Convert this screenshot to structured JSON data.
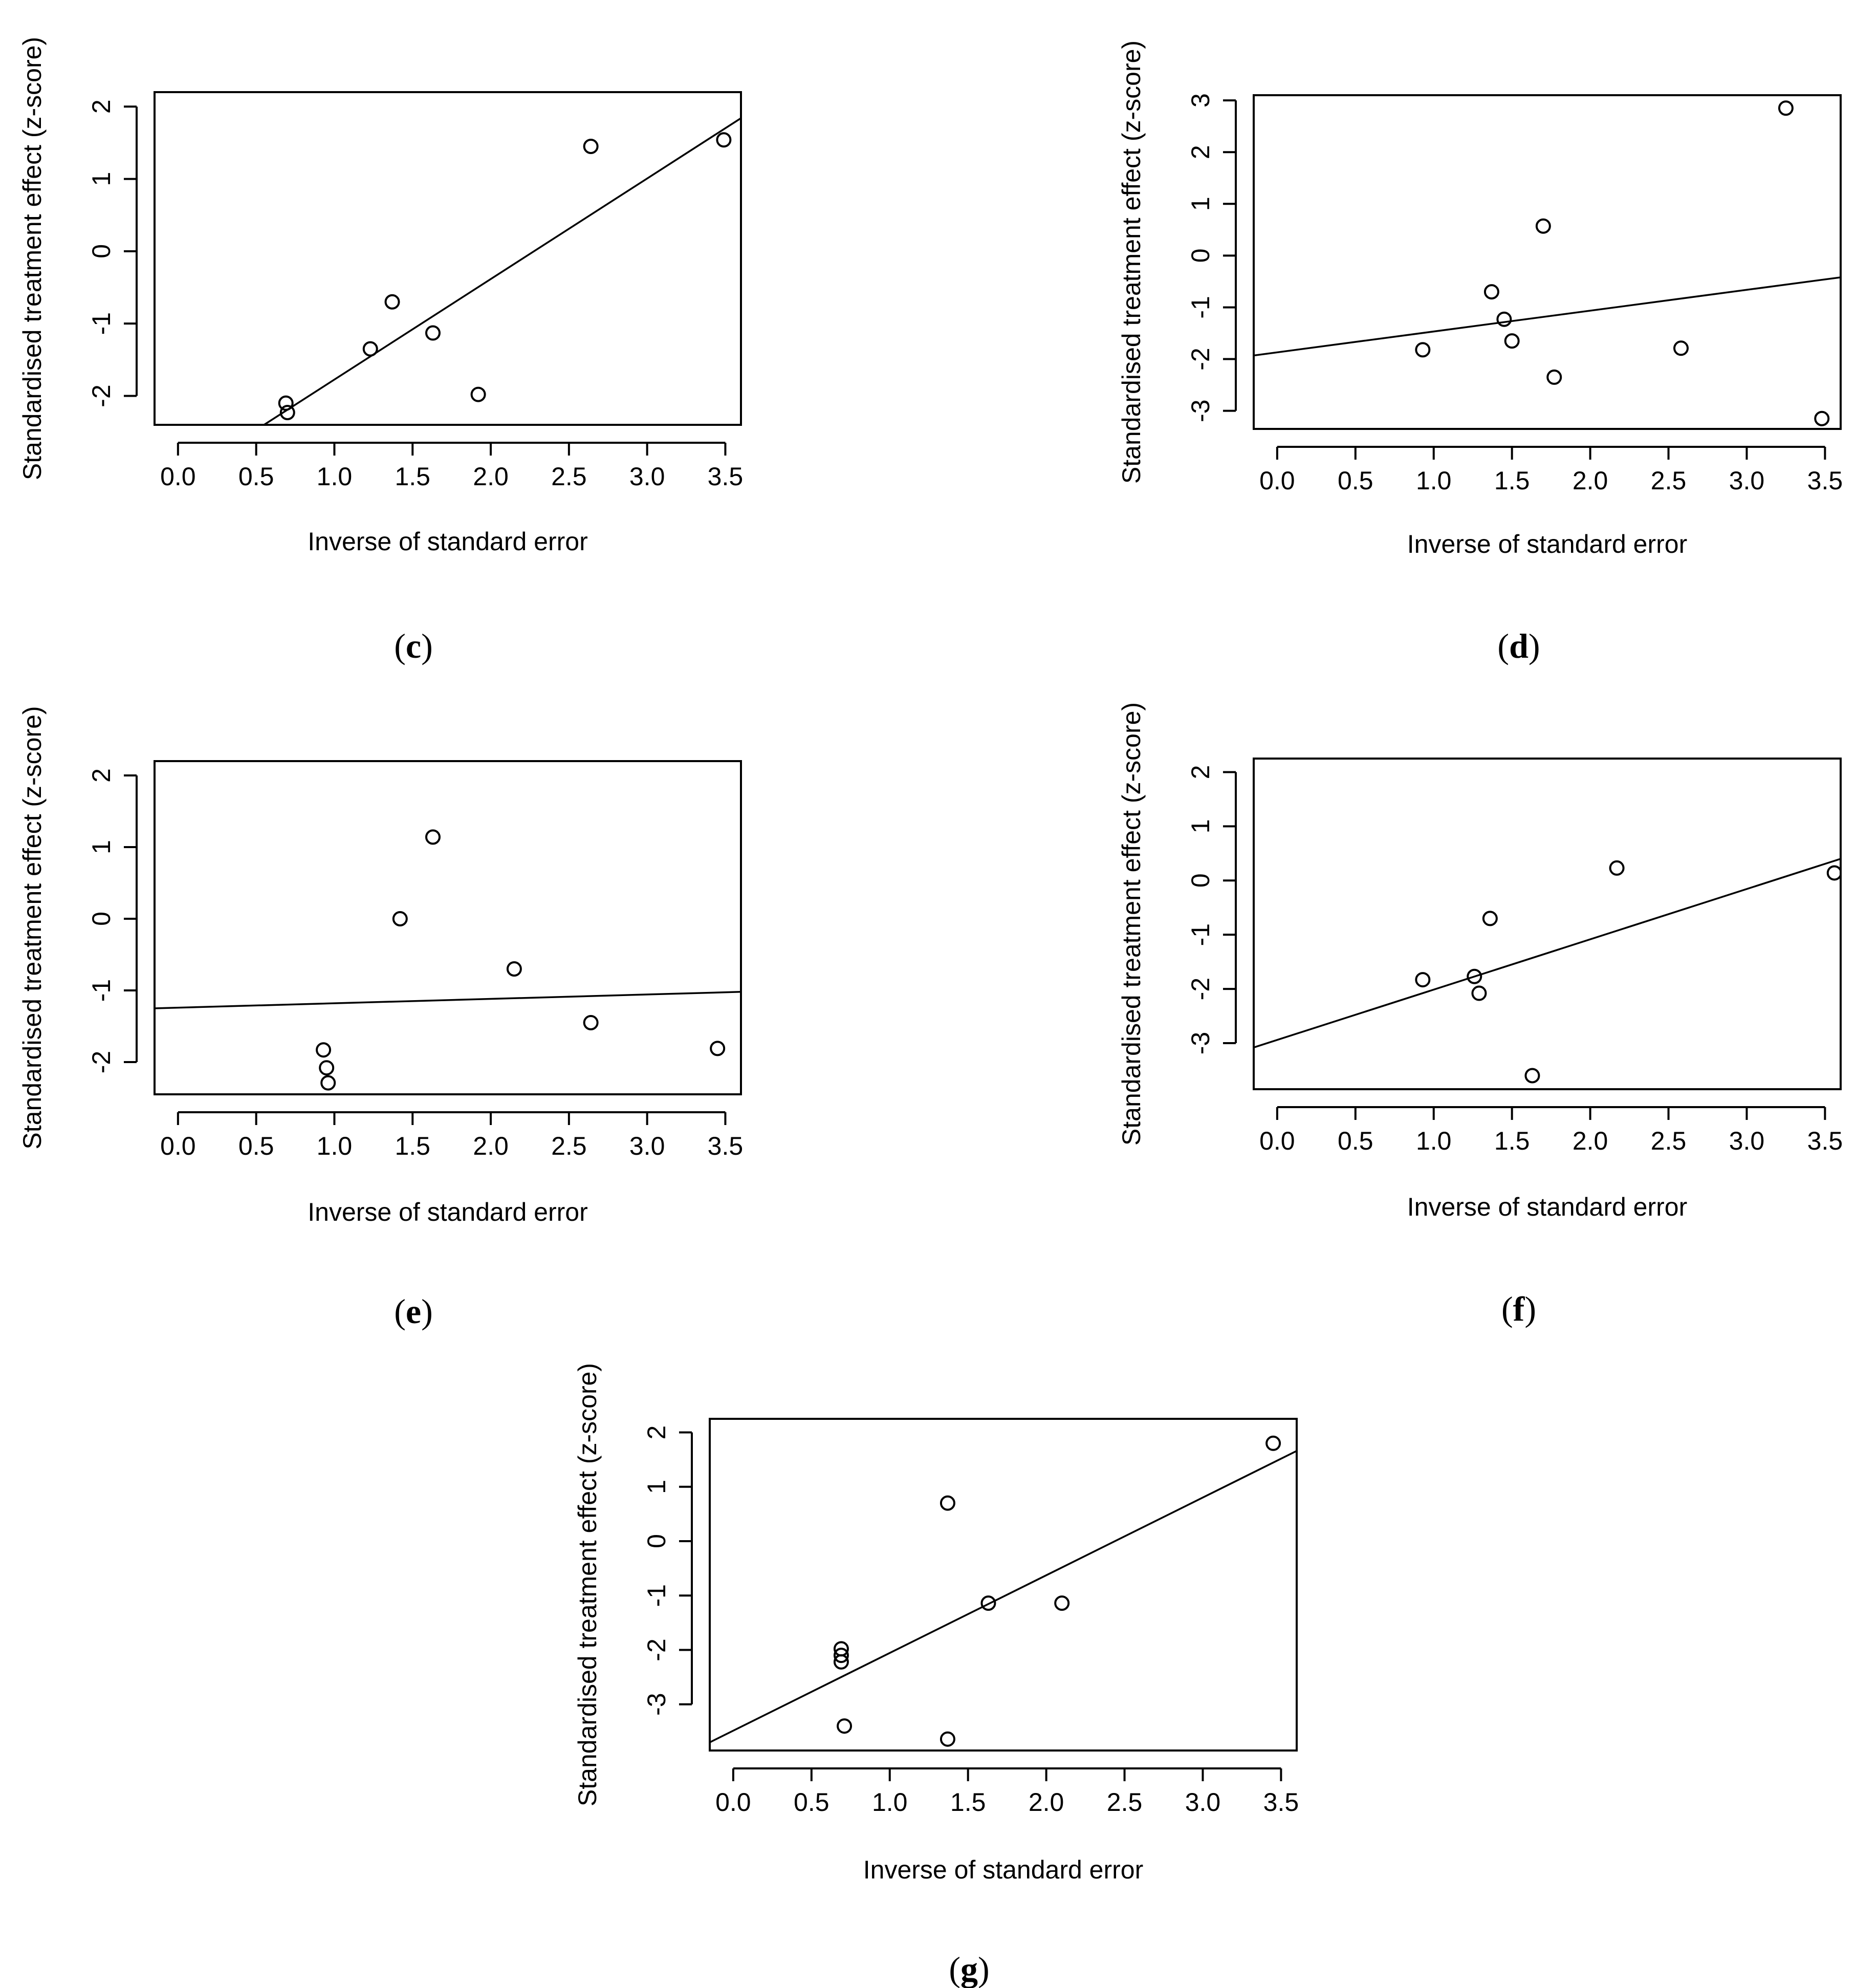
{
  "chart_data": [
    {
      "panel": "c",
      "type": "scatter",
      "xlabel": "Inverse of standard error",
      "ylabel": "Standardised treatment effect (z-score)",
      "xlim": [
        -0.15,
        3.6
      ],
      "ylim": [
        -2.4,
        2.2
      ],
      "xticks": [
        "0.0",
        "0.5",
        "1.0",
        "1.5",
        "2.0",
        "2.5",
        "3.0",
        "3.5"
      ],
      "yticks": [
        "-2",
        "-1",
        "0",
        "1",
        "2"
      ],
      "points": [
        [
          0.69,
          -2.1
        ],
        [
          0.7,
          -2.23
        ],
        [
          1.23,
          -1.35
        ],
        [
          1.37,
          -0.7
        ],
        [
          1.63,
          -1.13
        ],
        [
          1.92,
          -1.98
        ],
        [
          2.64,
          1.45
        ],
        [
          3.49,
          1.54
        ]
      ],
      "regression_line": [
        [
          0.55,
          -2.4
        ],
        [
          3.6,
          1.84
        ]
      ],
      "caption_letter": "c"
    },
    {
      "panel": "d",
      "type": "scatter",
      "xlabel": "Inverse of standard error",
      "ylabel": "Standardised treatment effect (z-score)",
      "xlim": [
        -0.15,
        3.6
      ],
      "ylim": [
        -3.35,
        3.1
      ],
      "xticks": [
        "0.0",
        "0.5",
        "1.0",
        "1.5",
        "2.0",
        "2.5",
        "3.0",
        "3.5"
      ],
      "yticks": [
        "-3",
        "-2",
        "-1",
        "0",
        "1",
        "2",
        "3"
      ],
      "points": [
        [
          0.93,
          -1.82
        ],
        [
          1.37,
          -0.7
        ],
        [
          1.45,
          -1.23
        ],
        [
          1.5,
          -1.65
        ],
        [
          1.7,
          0.57
        ],
        [
          1.77,
          -2.35
        ],
        [
          2.58,
          -1.79
        ],
        [
          3.25,
          2.85
        ],
        [
          3.48,
          -3.15
        ]
      ],
      "regression_line": [
        [
          -0.15,
          -1.93
        ],
        [
          3.6,
          -0.42
        ]
      ],
      "caption_letter": "d"
    },
    {
      "panel": "e",
      "type": "scatter",
      "xlabel": "Inverse of standard error",
      "ylabel": "Standardised treatment effect (z-score)",
      "xlim": [
        -0.15,
        3.6
      ],
      "ylim": [
        -2.45,
        2.2
      ],
      "xticks": [
        "0.0",
        "0.5",
        "1.0",
        "1.5",
        "2.0",
        "2.5",
        "3.0",
        "3.5"
      ],
      "yticks": [
        "-2",
        "-1",
        "0",
        "1",
        "2"
      ],
      "points": [
        [
          0.93,
          -1.83
        ],
        [
          0.95,
          -2.08
        ],
        [
          0.96,
          -2.29
        ],
        [
          1.42,
          0.0
        ],
        [
          1.63,
          1.14
        ],
        [
          2.15,
          -0.7
        ],
        [
          2.64,
          -1.45
        ],
        [
          3.45,
          -1.81
        ]
      ],
      "regression_line": [
        [
          -0.15,
          -1.25
        ],
        [
          3.6,
          -1.02
        ]
      ],
      "caption_letter": "e"
    },
    {
      "panel": "f",
      "type": "scatter",
      "xlabel": "Inverse of standard error",
      "ylabel": "Standardised treatment effect (z-score)",
      "xlim": [
        -0.15,
        3.6
      ],
      "ylim": [
        -3.85,
        2.25
      ],
      "xticks": [
        "0.0",
        "0.5",
        "1.0",
        "1.5",
        "2.0",
        "2.5",
        "3.0",
        "3.5"
      ],
      "yticks": [
        "-3",
        "-2",
        "-1",
        "0",
        "1",
        "2"
      ],
      "points": [
        [
          0.93,
          -1.83
        ],
        [
          1.26,
          -1.77
        ],
        [
          1.29,
          -2.08
        ],
        [
          1.36,
          -0.7
        ],
        [
          1.63,
          -3.6
        ],
        [
          2.17,
          0.23
        ],
        [
          3.56,
          0.14
        ]
      ],
      "regression_line": [
        [
          -0.15,
          -3.08
        ],
        [
          3.6,
          0.4
        ]
      ],
      "caption_letter": "f"
    },
    {
      "panel": "g",
      "type": "scatter",
      "xlabel": "Inverse of standard error",
      "ylabel": "Standardised treatment effect (z-score)",
      "xlim": [
        -0.15,
        3.6
      ],
      "ylim": [
        -3.85,
        2.25
      ],
      "xticks": [
        "0.0",
        "0.5",
        "1.0",
        "1.5",
        "2.0",
        "2.5",
        "3.0",
        "3.5"
      ],
      "yticks": [
        "-3",
        "-2",
        "-1",
        "0",
        "1",
        "2"
      ],
      "points": [
        [
          0.69,
          -1.98
        ],
        [
          0.69,
          -2.1
        ],
        [
          0.69,
          -2.22
        ],
        [
          0.71,
          -3.4
        ],
        [
          1.37,
          0.7
        ],
        [
          1.37,
          -3.64
        ],
        [
          1.63,
          -1.14
        ],
        [
          2.1,
          -1.14
        ],
        [
          3.45,
          1.8
        ]
      ],
      "regression_line": [
        [
          -0.15,
          -3.7
        ],
        [
          3.6,
          1.66
        ]
      ],
      "caption_letter": "g"
    }
  ]
}
